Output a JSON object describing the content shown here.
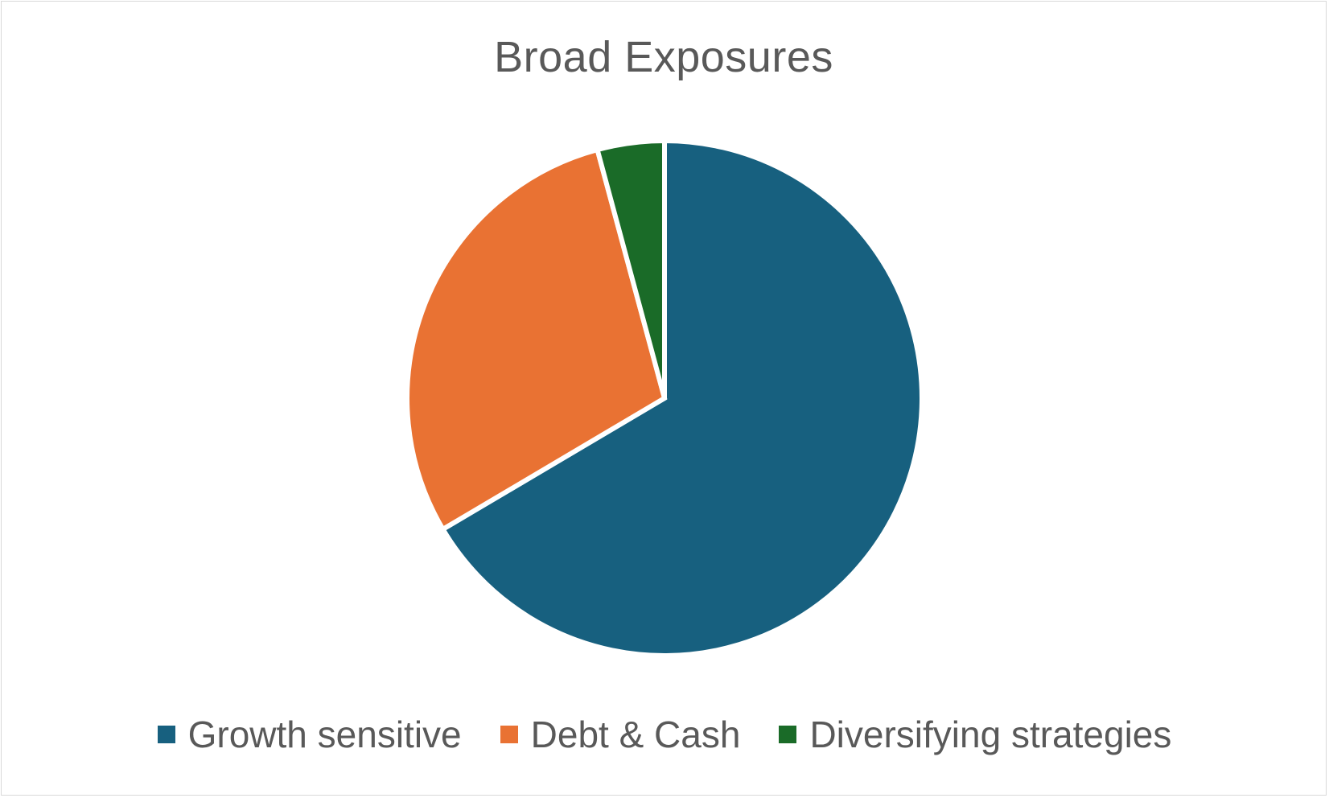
{
  "chart_data": {
    "type": "pie",
    "title": "Broad Exposures",
    "slices": [
      {
        "name": "Growth sensitive",
        "value": 66.5,
        "color": "#17607f"
      },
      {
        "name": "Debt & Cash",
        "value": 29.3,
        "color": "#e97233"
      },
      {
        "name": "Diversifying strategies",
        "value": 4.2,
        "color": "#1a6b28"
      }
    ],
    "start_angle": "12 o'clock",
    "direction": "clockwise",
    "legend_position": "bottom",
    "slice_border_color": "#ffffff"
  }
}
